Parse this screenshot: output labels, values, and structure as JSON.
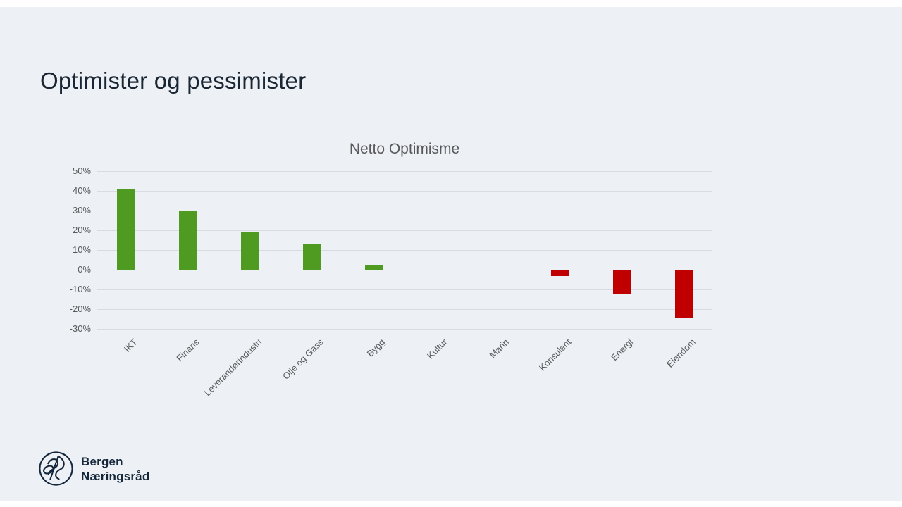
{
  "slide": {
    "title": "Optimister og pessimister",
    "background_color": "#edf1f6",
    "title_color": "#1a2633"
  },
  "chart_data": {
    "type": "bar",
    "title": "Netto Optimisme",
    "categories": [
      "IKT",
      "Finans",
      "Leverandørindustri",
      "Olje og Gass",
      "Bygg",
      "Kultur",
      "Marin",
      "Konsulent",
      "Energi",
      "Eiendom"
    ],
    "values": [
      41,
      30,
      19,
      13,
      2,
      0,
      0,
      -3,
      -12,
      -24
    ],
    "unit": "%",
    "xlabel": "",
    "ylabel": "",
    "ylim": [
      -30,
      50
    ],
    "ytick_step": 10,
    "ytick_labels": [
      "50%",
      "40%",
      "30%",
      "20%",
      "10%",
      "0%",
      "-10%",
      "-20%",
      "-30%"
    ],
    "grid": true,
    "legend": "none",
    "positive_color": "#4f9a20",
    "negative_color": "#c00000",
    "gridline_color": "#d8dce2",
    "label_color": "#595959",
    "title_color": "#595959"
  },
  "footer": {
    "logo_line1": "Bergen",
    "logo_line2": "Næringsråd",
    "logo_icon": "bergen-naeringsraad-monogram",
    "logo_color": "#14273a"
  }
}
